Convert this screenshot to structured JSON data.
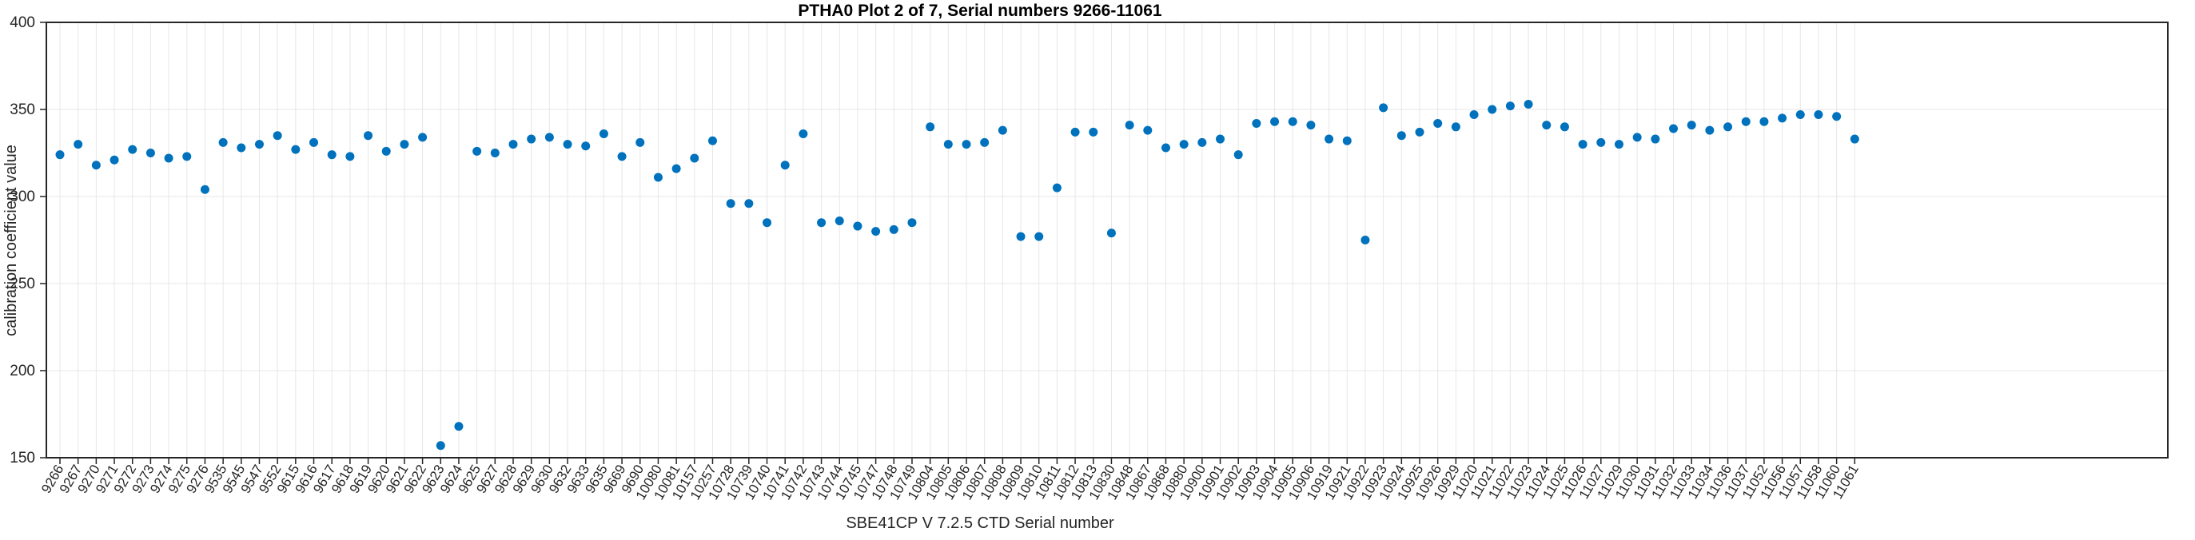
{
  "figure": {
    "title": "PTHA0 Plot 2 of 7, Serial numbers 9266-11061",
    "xlabel": "SBE41CP V 7.2.5 CTD Serial number",
    "ylabel": "calibration coefficient value"
  },
  "chart_data": {
    "type": "scatter",
    "title": "PTHA0 Plot 2 of 7, Serial numbers 9266-11061",
    "xlabel": "SBE41CP V 7.2.5 CTD Serial number",
    "ylabel": "calibration coefficient value",
    "ylim": [
      150,
      400
    ],
    "yticks": [
      150,
      200,
      250,
      300,
      350,
      400
    ],
    "grid": true,
    "legend": "none",
    "marker_color": "#0072BD",
    "grid_color": "#e7e7e7",
    "axis_color": "#262626",
    "x_tick_angle_deg": 60,
    "x_categories": [
      "9266",
      "9267",
      "9270",
      "9271",
      "9272",
      "9273",
      "9274",
      "9275",
      "9276",
      "9535",
      "9545",
      "9547",
      "9552",
      "9615",
      "9616",
      "9617",
      "9618",
      "9619",
      "9620",
      "9621",
      "9622",
      "9623",
      "9624",
      "9625",
      "9627",
      "9628",
      "9629",
      "9630",
      "9632",
      "9633",
      "9635",
      "9669",
      "9690",
      "10080",
      "10081",
      "10157",
      "10257",
      "10728",
      "10739",
      "10740",
      "10741",
      "10742",
      "10743",
      "10744",
      "10745",
      "10747",
      "10748",
      "10749",
      "10804",
      "10805",
      "10806",
      "10807",
      "10808",
      "10809",
      "10810",
      "10811",
      "10812",
      "10813",
      "10830",
      "10848",
      "10867",
      "10868",
      "10880",
      "10900",
      "10901",
      "10902",
      "10903",
      "10904",
      "10905",
      "10906",
      "10919",
      "10921",
      "10922",
      "10923",
      "10924",
      "10925",
      "10926",
      "10929",
      "11020",
      "11021",
      "11022",
      "11023",
      "11024",
      "11025",
      "11026",
      "11027",
      "11029",
      "11030",
      "11031",
      "11032",
      "11033",
      "11034",
      "11036",
      "11037",
      "11052",
      "11056",
      "11057",
      "11058",
      "11060",
      "11061"
    ],
    "values": [
      324,
      330,
      318,
      321,
      327,
      325,
      322,
      323,
      304,
      331,
      328,
      330,
      335,
      327,
      331,
      324,
      323,
      335,
      326,
      330,
      334,
      157,
      168,
      326,
      325,
      330,
      333,
      334,
      330,
      329,
      336,
      323,
      331,
      311,
      316,
      322,
      332,
      296,
      296,
      285,
      318,
      336,
      285,
      286,
      283,
      280,
      281,
      285,
      340,
      330,
      330,
      331,
      338,
      277,
      277,
      305,
      337,
      337,
      279,
      341,
      338,
      328,
      330,
      331,
      333,
      324,
      342,
      343,
      343,
      341,
      333,
      332,
      275,
      351,
      335,
      337,
      342,
      340,
      347,
      350,
      352,
      353,
      341,
      340,
      330,
      331,
      330,
      334,
      333,
      339,
      341,
      338,
      340,
      343,
      343,
      345,
      347,
      347,
      346,
      333
    ]
  }
}
